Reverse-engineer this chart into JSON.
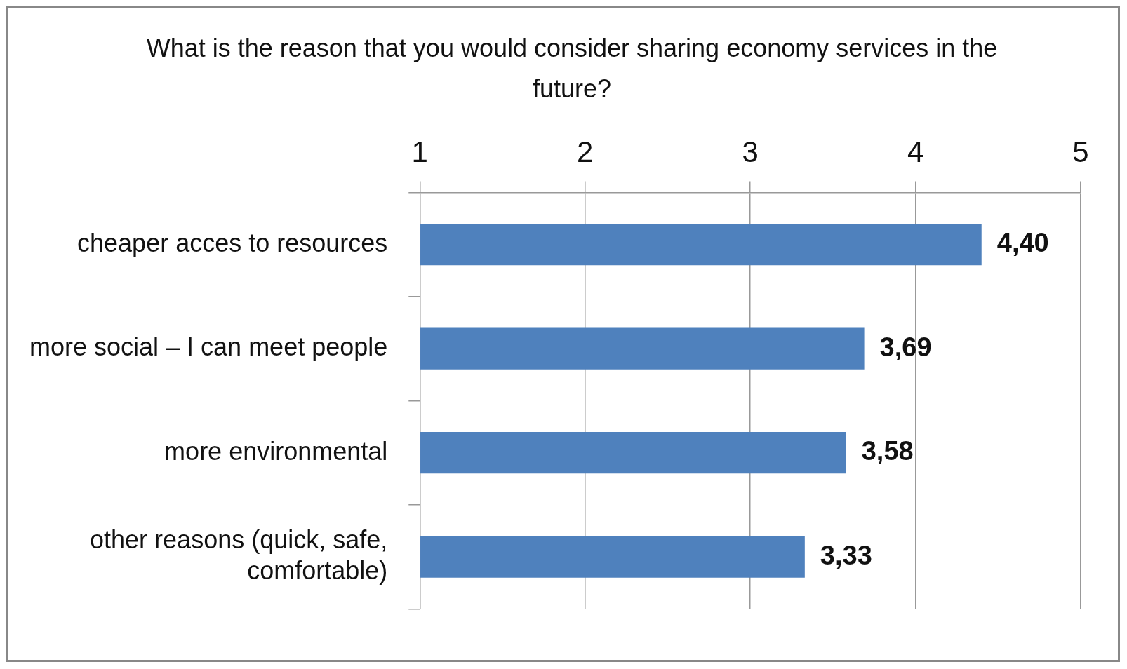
{
  "chart_data": {
    "type": "bar",
    "orientation": "horizontal",
    "title": "What is the reason that you would consider sharing economy services in the future?",
    "categories": [
      "cheaper acces to resources",
      "more social – I can meet people",
      "more environmental",
      "other reasons (quick, safe, comfortable)"
    ],
    "values": [
      4.4,
      3.69,
      3.58,
      3.33
    ],
    "value_labels": [
      "4,40",
      "3,69",
      "3,58",
      "3,33"
    ],
    "color": "#4f81bd",
    "xlim": [
      1,
      5
    ],
    "xticks": [
      1,
      2,
      3,
      4,
      5
    ],
    "grid": "x",
    "legend": false
  }
}
